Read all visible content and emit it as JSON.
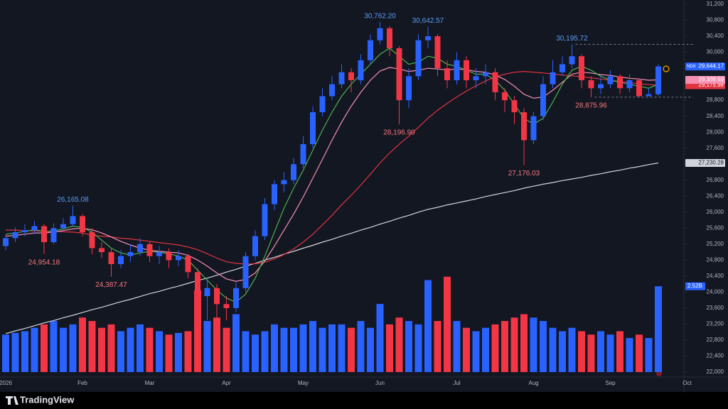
{
  "brand": "TradingView",
  "chart_data": {
    "type": "candlestick",
    "categories": [
      "2026",
      null,
      null,
      null,
      null,
      null,
      null,
      null,
      "Feb",
      null,
      null,
      null,
      null,
      null,
      null,
      "Mar",
      null,
      null,
      null,
      null,
      null,
      null,
      null,
      "Apr",
      null,
      null,
      null,
      null,
      null,
      null,
      null,
      "May",
      null,
      null,
      null,
      null,
      null,
      null,
      null,
      "Jun",
      null,
      null,
      null,
      null,
      null,
      null,
      null,
      "Jul",
      null,
      null,
      null,
      null,
      null,
      null,
      null,
      "Aug",
      null,
      null,
      null,
      null,
      null,
      null,
      null,
      "Sep",
      null,
      null,
      null,
      null,
      null,
      null,
      null,
      "Oct"
    ],
    "candles": {
      "name": "NDX",
      "up_color": "#2962ff",
      "down_color": "#f23645",
      "end_label": "29,644.17",
      "open": [
        25150,
        25350,
        25500,
        25550,
        25650,
        25250,
        25600,
        25700,
        25900,
        25500,
        25100,
        25000,
        24700,
        24900,
        25000,
        25200,
        24900,
        25000,
        24800,
        24900,
        24500,
        23900,
        24100,
        23700,
        23600,
        24100,
        24900,
        25400,
        26200,
        26700,
        26800,
        27200,
        27700,
        28500,
        28900,
        29200,
        29500,
        29300,
        29800,
        30300,
        30600,
        30100,
        28800,
        29400,
        30300,
        30400,
        29600,
        29300,
        29800,
        29300,
        29400,
        29500,
        29000,
        28800,
        28500,
        27800,
        28400,
        29200,
        29500,
        29700,
        29900,
        29300,
        29100,
        29200,
        29400,
        29100,
        29300,
        28900,
        28950,
        null,
        null,
        null
      ],
      "high": [
        25450,
        25620,
        25700,
        25780,
        25700,
        25720,
        25850,
        26165.08,
        25950,
        25600,
        25250,
        25100,
        25050,
        25200,
        25350,
        25250,
        25150,
        25100,
        25050,
        24950,
        24600,
        24300,
        24200,
        23900,
        24250,
        25000,
        25550,
        26350,
        26800,
        27000,
        27350,
        27900,
        28650,
        29100,
        29400,
        29700,
        29600,
        29950,
        30450,
        30762.2,
        30650,
        30150,
        29600,
        30450,
        30642.57,
        30450,
        29800,
        30000,
        29900,
        29600,
        29700,
        29600,
        29100,
        28900,
        28600,
        28500,
        29400,
        29800,
        29900,
        30195.72,
        29950,
        29400,
        29400,
        29550,
        29450,
        29450,
        29350,
        29100,
        29700,
        null,
        null,
        null
      ],
      "low": [
        25050,
        25250,
        25400,
        25450,
        24954.18,
        25200,
        25500,
        25650,
        25400,
        24950,
        24850,
        24387.47,
        24600,
        24750,
        24900,
        24750,
        24700,
        24600,
        24650,
        24350,
        23100,
        23300,
        23000,
        23300,
        23500,
        24000,
        24800,
        25300,
        26050,
        26500,
        26700,
        27100,
        27600,
        28400,
        28800,
        29100,
        29000,
        29200,
        29700,
        30200,
        29900,
        28196.9,
        28600,
        29300,
        30100,
        29400,
        29100,
        29200,
        29100,
        29100,
        29200,
        28800,
        28500,
        28200,
        27176.03,
        27700,
        28300,
        29100,
        29400,
        29600,
        29100,
        28875.96,
        28950,
        29100,
        28950,
        29000,
        28890,
        28900,
        28900,
        null,
        null,
        null
      ],
      "close": [
        25350,
        25500,
        25550,
        25650,
        25250,
        25600,
        25700,
        25900,
        25500,
        25100,
        25000,
        24700,
        24900,
        25000,
        25200,
        24900,
        25000,
        24800,
        24900,
        24500,
        23900,
        24100,
        23700,
        23600,
        24100,
        24900,
        25400,
        26200,
        26700,
        26800,
        27200,
        27700,
        28500,
        28900,
        29200,
        29500,
        29300,
        29800,
        30300,
        30600,
        30100,
        28800,
        29400,
        30300,
        30400,
        29600,
        29300,
        29800,
        29300,
        29400,
        29500,
        29000,
        28800,
        28500,
        27800,
        28400,
        29200,
        29500,
        29700,
        29900,
        29300,
        29100,
        29200,
        29400,
        29100,
        29300,
        28900,
        28950,
        29644.17,
        null,
        null,
        null
      ]
    },
    "volume": {
      "ylim": [
        0,
        10.8
      ],
      "end_label": "2.52B",
      "values": [
        1.1,
        1.15,
        1.2,
        1.3,
        1.4,
        1.5,
        1.3,
        1.4,
        1.6,
        1.5,
        1.3,
        1.4,
        1.2,
        1.3,
        1.4,
        1.3,
        1.2,
        1.1,
        1.15,
        1.2,
        2.4,
        1.5,
        1.6,
        1.3,
        1.7,
        1.2,
        1.1,
        1.2,
        1.4,
        1.3,
        1.3,
        1.4,
        1.5,
        1.3,
        1.4,
        1.4,
        1.3,
        1.5,
        1.3,
        2.0,
        1.4,
        1.6,
        1.5,
        1.4,
        2.7,
        1.5,
        2.8,
        1.5,
        1.3,
        1.2,
        1.3,
        1.4,
        1.5,
        1.6,
        1.7,
        1.6,
        1.5,
        1.3,
        1.2,
        1.3,
        1.2,
        1.1,
        1.2,
        1.1,
        1.2,
        1.0,
        1.1,
        1.0,
        2.52,
        null,
        null,
        null
      ]
    },
    "series": [
      {
        "color": "#d1d4dc",
        "end_label": "27,230.28",
        "values": [
          22960,
          23030,
          23090,
          23160,
          23230,
          23290,
          23360,
          23420,
          23490,
          23560,
          23620,
          23690,
          23760,
          23820,
          23890,
          23960,
          24020,
          24090,
          24150,
          24220,
          24290,
          24350,
          24420,
          24500,
          24570,
          24650,
          24720,
          24800,
          24870,
          24950,
          25020,
          25100,
          25170,
          25250,
          25320,
          25400,
          25470,
          25550,
          25620,
          25700,
          25770,
          25850,
          25920,
          26000,
          26070,
          26120,
          26180,
          26230,
          26280,
          26330,
          26390,
          26440,
          26490,
          26540,
          26600,
          26650,
          26700,
          26740,
          26790,
          26830,
          26870,
          26920,
          26960,
          27010,
          27050,
          27100,
          27140,
          27190,
          27230.28,
          null,
          null,
          null
        ]
      },
      {
        "color": "#e0343f",
        "end_label": "29,175.98",
        "values": [
          25550,
          25550,
          25540,
          25530,
          25520,
          25520,
          25510,
          25500,
          25480,
          25420,
          25400,
          25380,
          25350,
          25330,
          25300,
          25270,
          25240,
          25210,
          25180,
          25130,
          25060,
          24960,
          24850,
          24760,
          24720,
          24700,
          24710,
          24750,
          24830,
          24940,
          25080,
          25250,
          25450,
          25680,
          25920,
          26180,
          26420,
          26680,
          26950,
          27230,
          27480,
          27700,
          27900,
          28120,
          28350,
          28550,
          28720,
          28880,
          29030,
          29160,
          29280,
          29380,
          29450,
          29500,
          29520,
          29500,
          29480,
          29460,
          29430,
          29410,
          29390,
          29360,
          29330,
          29300,
          29270,
          29240,
          29210,
          29190,
          29175.98,
          null,
          null,
          null
        ]
      },
      {
        "color": "#f48fb1",
        "end_label": "29,309.59",
        "values": [
          25400,
          25420,
          25450,
          25480,
          25480,
          25500,
          25540,
          25580,
          25600,
          25560,
          25480,
          25380,
          25270,
          25180,
          25100,
          25050,
          25020,
          25000,
          24980,
          24920,
          24800,
          24650,
          24480,
          24330,
          24270,
          24320,
          24480,
          24780,
          25150,
          25550,
          25950,
          26380,
          26850,
          27320,
          27800,
          28250,
          28650,
          29000,
          29300,
          29530,
          29620,
          29580,
          29520,
          29550,
          29600,
          29580,
          29560,
          29580,
          29560,
          29520,
          29500,
          29430,
          29320,
          29150,
          28950,
          28850,
          28880,
          29050,
          29250,
          29450,
          29500,
          29480,
          29440,
          29420,
          29380,
          29350,
          29330,
          29300,
          29309.59,
          null,
          null,
          null
        ]
      },
      {
        "color": "#4caf50",
        "values": [
          25450,
          25480,
          25520,
          25560,
          25520,
          25530,
          25580,
          25650,
          25620,
          25500,
          25300,
          25100,
          24980,
          24930,
          24980,
          25020,
          25000,
          24960,
          24900,
          24800,
          24550,
          24300,
          24050,
          23850,
          23750,
          23950,
          24350,
          24900,
          25500,
          26100,
          26600,
          27050,
          27550,
          28050,
          28500,
          28900,
          29200,
          29450,
          29700,
          29950,
          30100,
          29900,
          29700,
          29750,
          29900,
          29850,
          29700,
          29650,
          29550,
          29450,
          29450,
          29300,
          29050,
          28700,
          28350,
          28200,
          28350,
          28750,
          29200,
          29550,
          29650,
          29550,
          29400,
          29300,
          29250,
          29200,
          29150,
          29100,
          29200,
          null,
          null,
          null
        ]
      }
    ],
    "annotations": [
      {
        "value": 30762.2,
        "label": "30,762.20"
      },
      {
        "value": 30642.57,
        "label": "30,642.57"
      },
      {
        "value": 30195.72,
        "label": "30,195.72",
        "dashed": true
      },
      {
        "value": 26165.08,
        "label": "26,165.08"
      },
      {
        "value": 24954.18,
        "label": "24,954.18"
      },
      {
        "value": 24387.47,
        "label": "24,387.47"
      },
      {
        "value": 28196.9,
        "label": "28,196.90"
      },
      {
        "value": 27176.03,
        "label": "27,176.03"
      },
      {
        "value": 28875.96,
        "label": "28,875.96",
        "dashed": true
      }
    ],
    "high_color": "#5b9cf6",
    "low_color": "#f7787e",
    "grid": false,
    "ylim": [
      22000,
      31200
    ],
    "yticks": [
      {
        "value": 22000,
        "label": "22,000"
      },
      {
        "value": 22400,
        "label": "22,400"
      },
      {
        "value": 22800,
        "label": "22,800"
      },
      {
        "value": 23200,
        "label": "23,200"
      },
      {
        "value": 23600,
        "label": "23,600"
      },
      {
        "value": 24000,
        "label": "24,000"
      },
      {
        "value": 24400,
        "label": "24,400"
      },
      {
        "value": 24800,
        "label": "24,800"
      },
      {
        "value": 25200,
        "label": "25,200"
      },
      {
        "value": 25600,
        "label": "25,600"
      },
      {
        "value": 26000,
        "label": "26,000"
      },
      {
        "value": 26400,
        "label": "26,400"
      },
      {
        "value": 26800,
        "label": "26,800"
      },
      {
        "value": 27200,
        "label": "27,200"
      },
      {
        "value": 27600,
        "label": "27,600"
      },
      {
        "value": 28000,
        "label": "28,000"
      },
      {
        "value": 28400,
        "label": "28,400"
      },
      {
        "value": 28800,
        "label": "28,800"
      },
      {
        "value": 29200,
        "label": "29,200"
      },
      {
        "value": 29600,
        "label": "29,600"
      },
      {
        "value": 30000,
        "label": "30,000"
      },
      {
        "value": 30400,
        "label": "30,400"
      },
      {
        "value": 30800,
        "label": "30,800"
      },
      {
        "value": 31200,
        "label": "31,200"
      }
    ]
  }
}
